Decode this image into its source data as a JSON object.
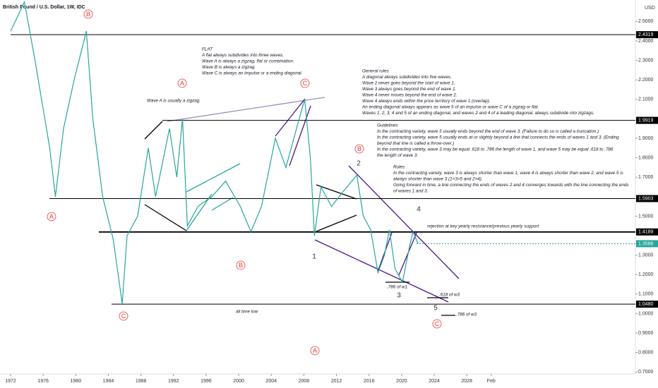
{
  "chart_data": {
    "type": "line",
    "title": "British Pound / U.S. Dollar, 1W, IDC",
    "y_unit": "USD",
    "color": "#26a69a",
    "x": [
      1972.0,
      1973.7,
      1975.0,
      1976.8,
      1977.5,
      1978.5,
      1979.8,
      1981.3,
      1982.1,
      1983.3,
      1984.6,
      1985.7,
      1986.3,
      1987.6,
      1988.9,
      1989.8,
      1991.5,
      1992.4,
      1993.1,
      1993.7,
      1995.0,
      1996.7,
      1998.4,
      2000.2,
      2001.5,
      2002.8,
      2004.5,
      2005.8,
      2007.1,
      2008.1,
      2008.8,
      2009.3,
      2010.1,
      2011.4,
      2012.7,
      2014.5,
      2015.3,
      2016.2,
      2017.1,
      2017.9,
      2018.5,
      2019.2,
      2020.1,
      2021.0,
      2021.4,
      2022.0
    ],
    "values": [
      2.45,
      2.6,
      2.3,
      1.85,
      1.6,
      1.95,
      2.2,
      2.45,
      2.0,
      1.6,
      1.38,
      1.05,
      1.4,
      1.5,
      1.85,
      1.6,
      1.95,
      1.7,
      2.0,
      1.45,
      1.55,
      1.6,
      1.68,
      1.55,
      1.42,
      1.55,
      1.9,
      1.75,
      1.95,
      2.1,
      1.8,
      1.4,
      1.65,
      1.55,
      1.62,
      1.71,
      1.5,
      1.43,
      1.21,
      1.3,
      1.43,
      1.23,
      1.16,
      1.35,
      1.42,
      1.3586
    ],
    "xlim": [
      1970.7,
      2048.7
    ],
    "ylim": [
      0.69,
      2.61
    ],
    "xticks": [
      1972,
      1976,
      1980,
      1984,
      1988,
      1992,
      1996,
      2000,
      2004,
      2008,
      2012,
      2016,
      2020,
      2024,
      2028,
      {
        "value": 2031,
        "label": "Feb"
      }
    ],
    "yticks": [
      {
        "value": 2.5,
        "label": "2.5000"
      },
      {
        "value": 2.4,
        "label": "2.4000"
      },
      {
        "value": 2.3,
        "label": "2.3000"
      },
      {
        "value": 2.2,
        "label": "2.2000"
      },
      {
        "value": 2.1,
        "label": "2.1000"
      },
      {
        "value": 1.9,
        "label": "1.9000"
      },
      {
        "value": 1.8,
        "label": "1.8000"
      },
      {
        "value": 1.7,
        "label": "1.7000"
      },
      {
        "value": 1.5,
        "label": "1.5000"
      },
      {
        "value": 1.3,
        "label": "1.3000"
      },
      {
        "value": 1.2,
        "label": "1.2000"
      },
      {
        "value": 1.1,
        "label": "1.1000"
      },
      {
        "value": 1.0,
        "label": "1.0000"
      },
      {
        "value": 0.9,
        "label": "0.9000"
      },
      {
        "value": 0.8,
        "label": "0.8000"
      },
      {
        "value": 0.7,
        "label": "0.7000"
      }
    ],
    "price_levels": [
      {
        "value": 2.4319,
        "label": "2.4319",
        "color": "#000000"
      },
      {
        "value": 1.9919,
        "label": "1.9919",
        "color": "#000000"
      },
      {
        "value": 1.5903,
        "label": "1.5903",
        "color": "#000000"
      },
      {
        "value": 1.4189,
        "label": "1.4189",
        "color": "#000000"
      },
      {
        "value": 1.3586,
        "label": "1.3586",
        "color": "#26a69a"
      },
      {
        "value": 1.048,
        "label": "1.0480",
        "color": "#000000"
      }
    ],
    "circled_labels": [
      "B",
      "A",
      "C",
      "A",
      "B",
      "C",
      "B",
      "A",
      "C"
    ],
    "wave_numbers": [
      "1",
      "2",
      "3",
      "4",
      "5"
    ],
    "annotations": [
      "Wave A is usually a zigzag.",
      "rejection at key yearly resistance/previous yearly support",
      "all time low",
      ".786 of w1",
      ".618 of w3",
      ".786 of w3"
    ],
    "notes": [
      {
        "title": "FLAT",
        "lines": [
          "A flat always subdivides into three waves.",
          "Wave A is always a zigzag, flat or combination.",
          "Wave B is always a zigzag.",
          "Wave C is always an impulse or a ending diagonal."
        ]
      },
      {
        "title": "General rules",
        "lines": [
          "A diagonal always subdivides into five waves.",
          "Wave 2 never goes beyond the start of wave 1.",
          "Wave 3 always goes beyond the end of wave 1.",
          "Wave 4 never moves beyond the end of wave 2.",
          "Wave 4 always ends within the price territory of wave 1 (overlap).",
          "An ending diagonal always appears as wave 5 of an impulse or wave C of a zigzag or flat.",
          "Waves 1, 2, 3, 4 and 5 of an ending diagonal, and waves 2 and 4 of a leading diagonal, always subdivide into zigzags."
        ]
      },
      {
        "title": "Guidelines",
        "lines": [
          "In the contracting variety, wave 5 usually ends beyond the end of wave 3. (Failure to do so is called a truncation.)",
          "In the contracting variety, wave 5 usually ends at or slightly beyond a line that connects the ends of waves 1 and 3. (Ending",
          "beyond that line is called a throw-over.)",
          "In the contracting variety, wave 3 may be equal .618 to .786 the length of wave 1, and wave 5 may be equal .618 to .786",
          "the length of wave 3."
        ]
      },
      {
        "title": "Rules",
        "lines": [
          "In the contracting variety, wave 3 is always shorter than wave 1, wave 4 is always shorter than wave 2, and wave 5 is",
          "always shorter than wave 3 (1>3>5 and 2>4).",
          "Going forward in time, a line connecting the ends of waves 2 and 4 converges towards with the line connecting the ends",
          "of waves 1 and 3."
        ]
      }
    ]
  }
}
